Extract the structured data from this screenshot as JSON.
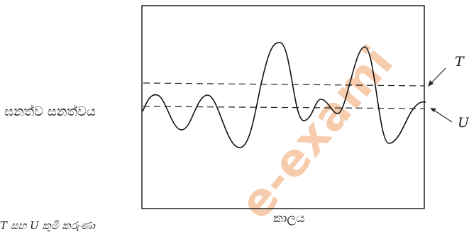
{
  "figure": {
    "y_axis_label": "ඝනත්ව සනත්වය",
    "x_axis_label": "කාලය",
    "line_T_label": "T",
    "line_U_label": "U",
    "caption_fragment": "T සහ U කුමි කරුණා"
  },
  "watermark": {
    "text": "e-exami",
    "color": "#f0a36b"
  }
}
